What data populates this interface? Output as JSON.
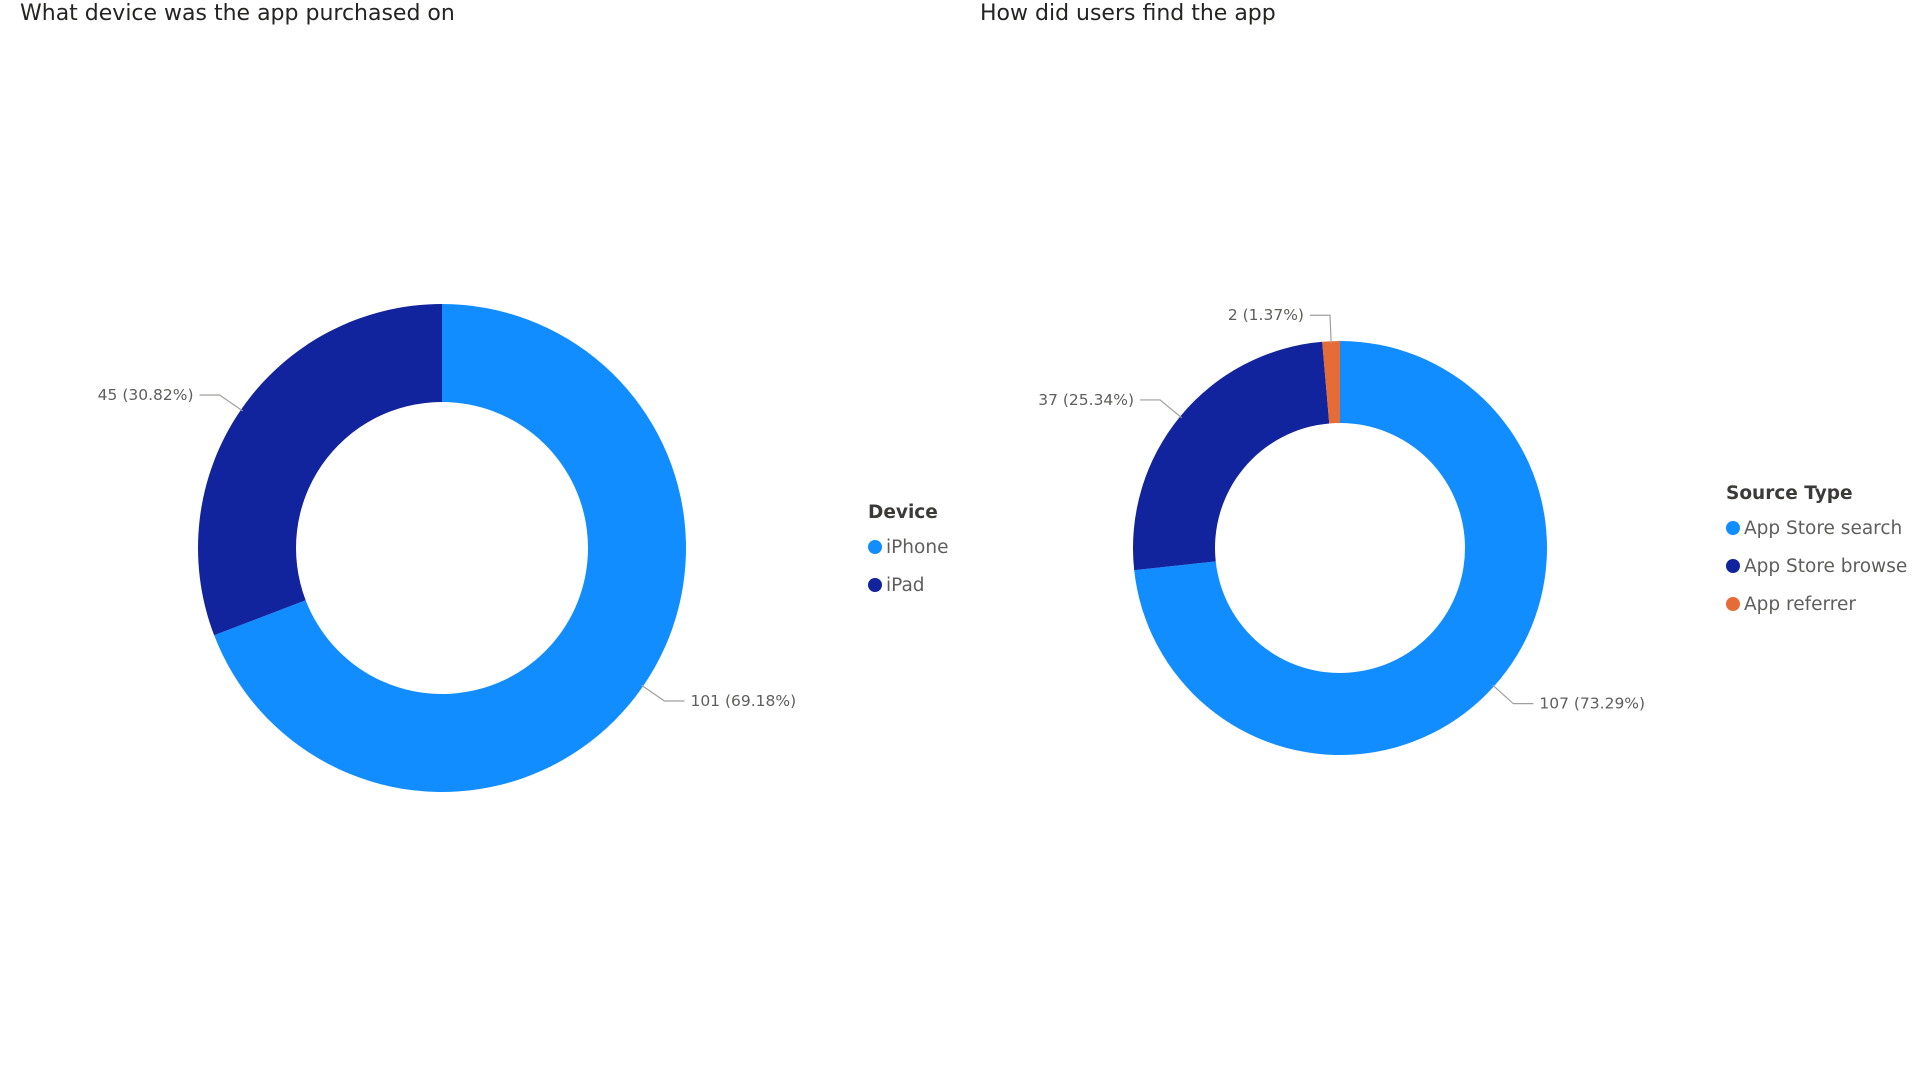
{
  "chart_data": [
    {
      "type": "donut",
      "title": "What device was the app purchased on",
      "legend_title": "Device",
      "legend_position": "right",
      "series": [
        {
          "name": "iPhone",
          "value": 101,
          "percent": 69.18,
          "label": "101 (69.18%)",
          "color": "#118DFF"
        },
        {
          "name": "iPad",
          "value": 45,
          "percent": 30.82,
          "label": "45 (30.82%)",
          "color": "#12239E"
        }
      ]
    },
    {
      "type": "donut",
      "title": "How did users find the app",
      "legend_title": "Source Type",
      "legend_position": "right",
      "series": [
        {
          "name": "App Store search",
          "value": 107,
          "percent": 73.29,
          "label": "107 (73.29%)",
          "color": "#118DFF"
        },
        {
          "name": "App Store browse",
          "value": 37,
          "percent": 25.34,
          "label": "37 (25.34%)",
          "color": "#12239E"
        },
        {
          "name": "App referrer",
          "value": 2,
          "percent": 1.37,
          "label": "2 (1.37%)",
          "color": "#E66C37"
        }
      ]
    }
  ]
}
